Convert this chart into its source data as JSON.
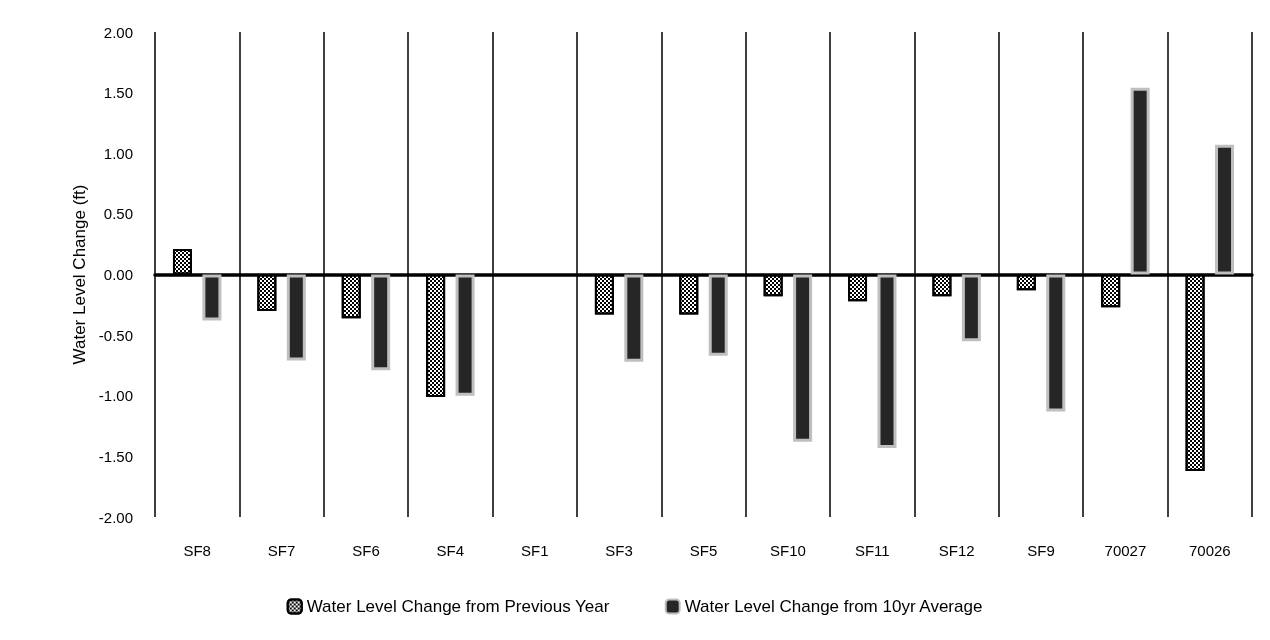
{
  "chart_data": {
    "type": "bar",
    "ylabel": "Water Level Change (ft)",
    "categories": [
      "SF8",
      "SF7",
      "SF6",
      "SF4",
      "SF1",
      "SF3",
      "SF5",
      "SF10",
      "SF11",
      "SF12",
      "SF9",
      "70027",
      "70026"
    ],
    "series": [
      {
        "name": "Water Level Change from Previous Year",
        "color": "#ffffff",
        "values": [
          0.21,
          -0.3,
          -0.36,
          -1.01,
          null,
          -0.33,
          -0.33,
          -0.18,
          -0.22,
          -0.18,
          -0.13,
          -0.27,
          -1.62
        ]
      },
      {
        "name": "Water Level Change from 10yr Average",
        "color": "#262626",
        "values": [
          -0.38,
          -0.71,
          -0.79,
          -1.0,
          null,
          -0.72,
          -0.67,
          -1.38,
          -1.43,
          -0.55,
          -1.13,
          1.54,
          1.07
        ]
      }
    ],
    "ylim": [
      -2,
      2
    ],
    "yticks": [
      {
        "value": -2,
        "label": "-2.00"
      },
      {
        "value": -1.5,
        "label": "-1.50"
      },
      {
        "value": -1,
        "label": "-1.00"
      },
      {
        "value": -0.5,
        "label": "-0.50"
      },
      {
        "value": 0,
        "label": "0.00"
      },
      {
        "value": 0.5,
        "label": "0.50"
      },
      {
        "value": 1,
        "label": "1.00"
      },
      {
        "value": 1.5,
        "label": "1.50"
      },
      {
        "value": 2,
        "label": "2.00"
      }
    ],
    "grid": "x",
    "legend": "bottom"
  }
}
